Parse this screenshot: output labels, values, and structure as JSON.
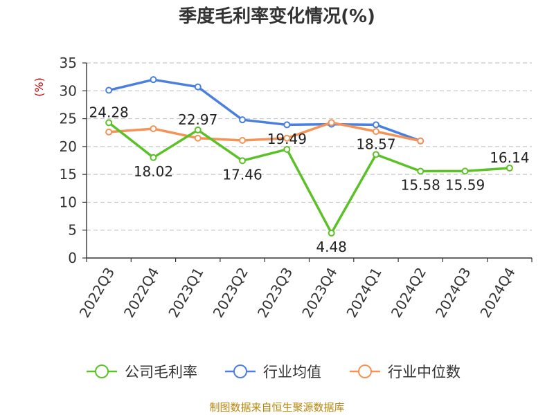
{
  "chart_data": {
    "type": "line",
    "title": "季度毛利率变化情况(%)",
    "y_unit_label": "(%)",
    "ylim": [
      0,
      35
    ],
    "yticks": [
      0,
      5,
      10,
      15,
      20,
      25,
      30,
      35
    ],
    "grid": "horizontal dashed",
    "legend_position": "bottom",
    "categories": [
      "2022Q3",
      "2022Q4",
      "2023Q1",
      "2023Q2",
      "2023Q3",
      "2023Q4",
      "2024Q1",
      "2024Q2",
      "2024Q3",
      "2024Q4"
    ],
    "series": [
      {
        "name": "公司毛利率",
        "color": "#5bc126",
        "values": [
          24.28,
          18.02,
          22.97,
          17.46,
          19.49,
          4.48,
          18.57,
          15.58,
          15.59,
          16.14
        ],
        "labels": [
          "24.28",
          "18.02",
          "22.97",
          "17.46",
          "19.49",
          "4.48",
          "18.57",
          "15.58",
          "15.59",
          "16.14"
        ]
      },
      {
        "name": "行业均值",
        "color": "#4a7fe0",
        "values": [
          30.1,
          32.0,
          30.7,
          24.8,
          23.9,
          24.0,
          23.9,
          21.0,
          null,
          null
        ]
      },
      {
        "name": "行业中位数",
        "color": "#f59256",
        "values": [
          22.6,
          23.2,
          21.5,
          21.1,
          21.5,
          24.3,
          22.7,
          21.0,
          null,
          null
        ]
      }
    ],
    "source": "制图数据来自恒生聚源数据库"
  }
}
